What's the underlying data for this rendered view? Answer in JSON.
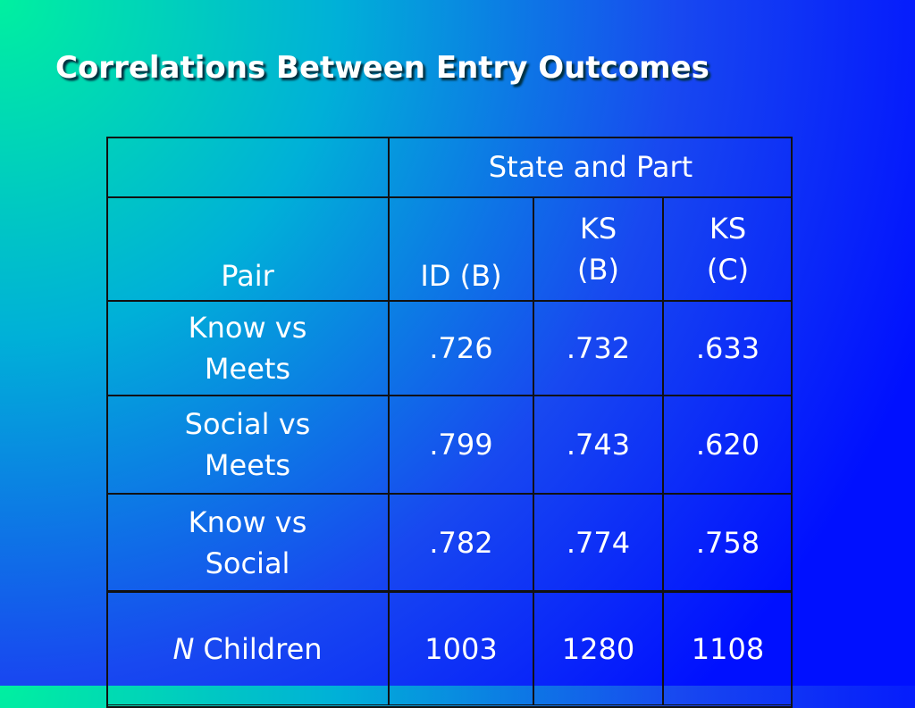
{
  "title": "Correlations Between Entry Outcomes",
  "table": {
    "group_header": "State and Part",
    "columns": [
      "Pair",
      "ID (B)",
      "KS (B)",
      "KS (C)"
    ],
    "rows": [
      [
        "Know vs Meets",
        ".726",
        ".732",
        ".633"
      ],
      [
        "Social vs Meets",
        ".799",
        ".743",
        ".620"
      ],
      [
        "Know vs Social",
        ".782",
        ".774",
        ".758"
      ]
    ],
    "footer": {
      "label_italic": "N",
      "label": "Children",
      "values": [
        "1003",
        "1280",
        "1108"
      ]
    }
  }
}
